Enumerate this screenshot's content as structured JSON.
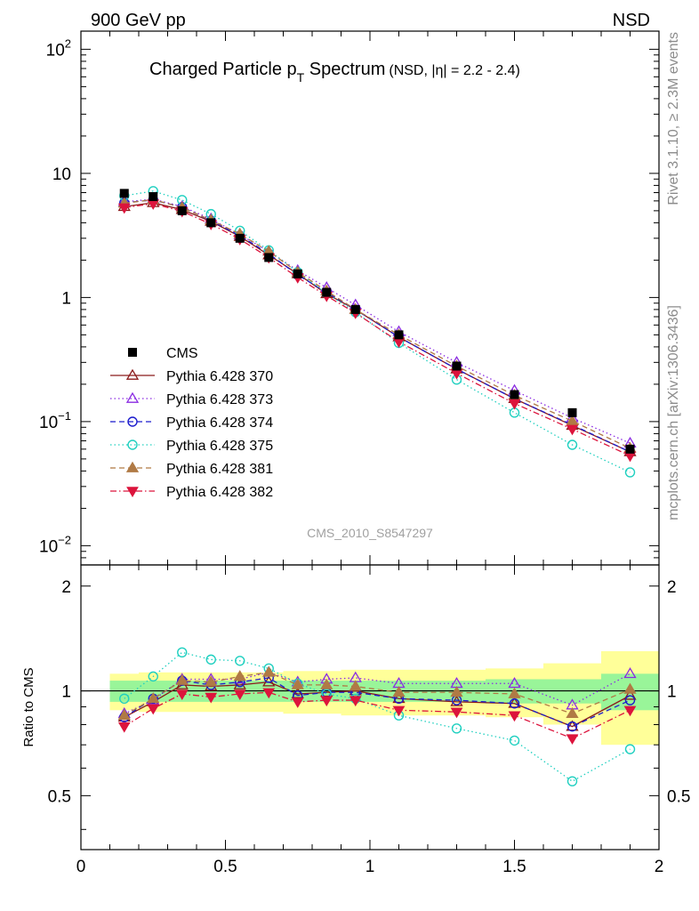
{
  "header": {
    "energy_label": "900 GeV pp",
    "process_label": "NSD"
  },
  "side_text": {
    "rivet": "Rivet 3.1.10, ≥ 2.3M events",
    "source": "mcplots.cern.ch [arXiv:1306.3436]"
  },
  "chart_data": [
    {
      "type": "scatter",
      "panel": "main",
      "title_main": "Charged Particle p",
      "title_sub": "T",
      "title_tail": " Spectrum",
      "title_cond": "(NSD, |η| = 2.2 - 2.4)",
      "analysis_id": "CMS_2010_S8547297",
      "yscale": "log",
      "xlim": [
        0,
        2
      ],
      "ylim": [
        0.007,
        140
      ],
      "y_tick_labels": [
        {
          "value": 0.01,
          "base": "10",
          "exp": "−2"
        },
        {
          "value": 0.1,
          "base": "10",
          "exp": "−1"
        },
        {
          "value": 1,
          "base": "1",
          "exp": ""
        },
        {
          "value": 10,
          "base": "10",
          "exp": ""
        },
        {
          "value": 100,
          "base": "10",
          "exp": "2"
        }
      ],
      "x": [
        0.15,
        0.25,
        0.35,
        0.45,
        0.55,
        0.65,
        0.75,
        0.85,
        0.95,
        1.1,
        1.3,
        1.5,
        1.7,
        1.9
      ],
      "data": {
        "name": "CMS",
        "color": "#000000",
        "values": [
          6.9,
          6.5,
          5.0,
          4.0,
          3.0,
          2.1,
          1.55,
          1.1,
          0.8,
          0.5,
          0.28,
          0.165,
          0.118,
          0.06
        ]
      },
      "series": [
        {
          "name": "Pythia 6.428 370",
          "color": "#8b1a1a",
          "marker": "triangle-up-open",
          "dash": "solid",
          "values": [
            5.4,
            5.8,
            5.1,
            4.1,
            3.1,
            2.2,
            1.55,
            1.07,
            0.8,
            0.48,
            0.265,
            0.153,
            0.093,
            0.057
          ]
        },
        {
          "name": "Pythia 6.428 373",
          "color": "#8a2be2",
          "marker": "triangle-up-open",
          "dash": "dot",
          "values": [
            5.9,
            6.2,
            5.4,
            4.3,
            3.2,
            2.35,
            1.65,
            1.2,
            0.87,
            0.53,
            0.3,
            0.178,
            0.107,
            0.067
          ]
        },
        {
          "name": "Pythia 6.428 374",
          "color": "#1c1ccd",
          "marker": "circle-open",
          "dash": "dash",
          "values": [
            5.8,
            6.1,
            5.35,
            4.15,
            3.15,
            2.25,
            1.52,
            1.1,
            0.8,
            0.48,
            0.265,
            0.153,
            0.094,
            0.057
          ]
        },
        {
          "name": "Pythia 6.428 375",
          "color": "#20d0c0",
          "marker": "circle-open",
          "dash": "dot",
          "values": [
            6.6,
            7.2,
            6.1,
            4.7,
            3.45,
            2.4,
            1.6,
            1.08,
            0.76,
            0.43,
            0.218,
            0.118,
            0.065,
            0.039
          ]
        },
        {
          "name": "Pythia 6.428 381",
          "color": "#b07a45",
          "marker": "triangle-up-filled",
          "dash": "dash",
          "values": [
            5.75,
            6.15,
            5.3,
            4.2,
            3.25,
            2.35,
            1.6,
            1.13,
            0.8,
            0.5,
            0.28,
            0.163,
            0.101,
            0.061
          ]
        },
        {
          "name": "Pythia 6.428 382",
          "color": "#dc143c",
          "marker": "triangle-down-filled",
          "dash": "dashdot",
          "values": [
            5.3,
            5.7,
            4.95,
            3.9,
            2.95,
            2.1,
            1.45,
            1.03,
            0.75,
            0.44,
            0.245,
            0.14,
            0.087,
            0.053
          ]
        }
      ]
    },
    {
      "type": "scatter",
      "panel": "ratio",
      "ylabel": "Ratio to CMS",
      "ylim": [
        0.35,
        2.3
      ],
      "xlim": [
        0,
        2
      ],
      "x_tick_labels": [
        {
          "value": 0,
          "label": "0"
        },
        {
          "value": 0.5,
          "label": "0.5"
        },
        {
          "value": 1,
          "label": "1"
        },
        {
          "value": 1.5,
          "label": "1.5"
        },
        {
          "value": 2,
          "label": "2"
        }
      ],
      "y_tick_labels": [
        {
          "value": 0.5,
          "label": "0.5"
        },
        {
          "value": 1,
          "label": "1"
        },
        {
          "value": 2,
          "label": "2"
        }
      ],
      "bands": {
        "bins": [
          [
            0.1,
            0.2
          ],
          [
            0.2,
            0.3
          ],
          [
            0.3,
            0.4
          ],
          [
            0.4,
            0.5
          ],
          [
            0.5,
            0.6
          ],
          [
            0.6,
            0.7
          ],
          [
            0.7,
            0.8
          ],
          [
            0.8,
            0.9
          ],
          [
            0.9,
            1.0
          ],
          [
            1.0,
            1.2
          ],
          [
            1.2,
            1.4
          ],
          [
            1.4,
            1.6
          ],
          [
            1.6,
            1.8
          ],
          [
            1.8,
            2.0
          ]
        ],
        "stat_half_width": [
          0.07,
          0.07,
          0.07,
          0.07,
          0.07,
          0.07,
          0.07,
          0.07,
          0.07,
          0.07,
          0.07,
          0.08,
          0.08,
          0.12
        ],
        "total_half_width": [
          0.12,
          0.13,
          0.13,
          0.13,
          0.13,
          0.13,
          0.14,
          0.14,
          0.15,
          0.15,
          0.15,
          0.16,
          0.2,
          0.3
        ],
        "stat_color": "#99f599",
        "total_color": "#ffff99"
      },
      "series_ratios": [
        {
          "name": "Pythia 6.428 370",
          "values": [
            0.84,
            0.93,
            1.04,
            1.03,
            1.04,
            1.06,
            0.98,
            0.99,
            1.0,
            0.95,
            0.93,
            0.92,
            0.79,
            0.97
          ]
        },
        {
          "name": "Pythia 6.428 373",
          "values": [
            0.86,
            0.94,
            1.08,
            1.08,
            1.08,
            1.13,
            1.06,
            1.08,
            1.09,
            1.05,
            1.05,
            1.05,
            0.91,
            1.12
          ]
        },
        {
          "name": "Pythia 6.428 374",
          "values": [
            0.84,
            0.95,
            1.07,
            1.04,
            1.06,
            1.09,
            0.97,
            0.99,
            0.99,
            0.95,
            0.94,
            0.92,
            0.79,
            0.94
          ]
        },
        {
          "name": "Pythia 6.428 375",
          "values": [
            0.95,
            1.1,
            1.29,
            1.23,
            1.22,
            1.16,
            1.05,
            0.98,
            0.95,
            0.85,
            0.78,
            0.72,
            0.55,
            0.68
          ]
        },
        {
          "name": "Pythia 6.428 381",
          "values": [
            0.85,
            0.95,
            1.07,
            1.06,
            1.1,
            1.13,
            1.04,
            1.04,
            1.03,
            0.99,
            0.99,
            0.98,
            0.86,
            1.01
          ]
        },
        {
          "name": "Pythia 6.428 382",
          "values": [
            0.79,
            0.89,
            0.98,
            0.96,
            0.98,
            0.99,
            0.93,
            0.94,
            0.94,
            0.88,
            0.87,
            0.85,
            0.73,
            0.88
          ]
        }
      ]
    }
  ]
}
